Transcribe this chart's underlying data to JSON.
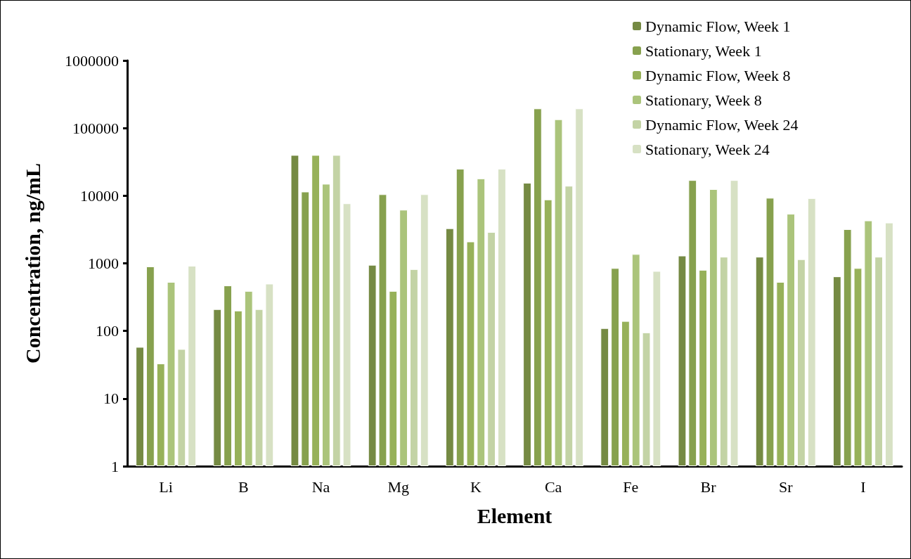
{
  "chart_data": {
    "type": "bar",
    "xlabel": "Element",
    "ylabel": "Concentration, ng/mL",
    "categories": [
      "Li",
      "B",
      "Na",
      "Mg",
      "K",
      "Ca",
      "Fe",
      "Br",
      "Sr",
      "I"
    ],
    "series": [
      {
        "name": "Dynamic Flow, Week 1",
        "color": "#758a43",
        "values": [
          58,
          210,
          40000,
          950,
          3300,
          15500,
          110,
          1300,
          1250,
          640
        ]
      },
      {
        "name": "Stationary, Week 1",
        "color": "#87a14e",
        "values": [
          900,
          470,
          11500,
          10500,
          25000,
          195000,
          850,
          17000,
          9300,
          3200
        ]
      },
      {
        "name": "Dynamic Flow, Week 8",
        "color": "#97b159",
        "values": [
          33,
          200,
          40000,
          390,
          2100,
          8800,
          140,
          800,
          530,
          850
        ]
      },
      {
        "name": "Stationary, Week 8",
        "color": "#abc47b",
        "values": [
          530,
          390,
          15000,
          6200,
          18000,
          135000,
          1370,
          12500,
          5400,
          4300
        ]
      },
      {
        "name": "Dynamic Flow, Week 24",
        "color": "#c3d3a5",
        "values": [
          54,
          210,
          40000,
          820,
          2900,
          14000,
          95,
          1250,
          1150,
          1250
        ]
      },
      {
        "name": "Stationary, Week 24",
        "color": "#d7e1c4",
        "values": [
          920,
          500,
          7700,
          10500,
          25000,
          195000,
          770,
          17000,
          9200,
          4000
        ]
      }
    ],
    "log": true,
    "ylim": [
      1,
      1000000
    ],
    "yticks": [
      1,
      10,
      100,
      1000,
      10000,
      100000,
      1000000
    ],
    "grid": false,
    "legend": "top right"
  }
}
